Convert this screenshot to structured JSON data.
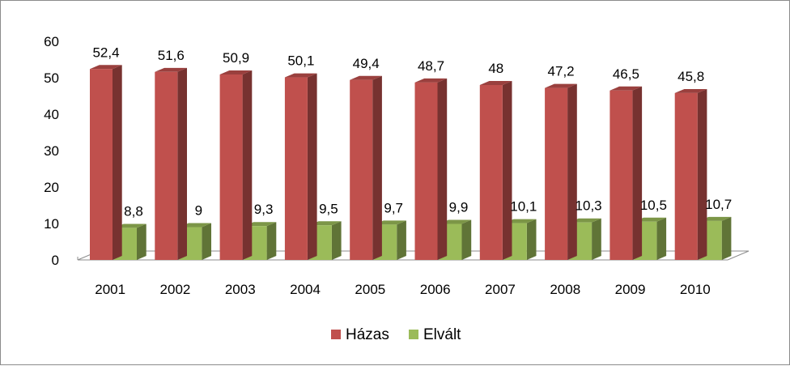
{
  "chart_data": {
    "type": "bar",
    "categories": [
      "2001",
      "2002",
      "2003",
      "2004",
      "2005",
      "2006",
      "2007",
      "2008",
      "2009",
      "2010"
    ],
    "series": [
      {
        "name": "Házas",
        "values": [
          52.4,
          51.6,
          50.9,
          50.1,
          49.4,
          48.7,
          48,
          47.2,
          46.5,
          45.8
        ],
        "labels": [
          "52,4",
          "51,6",
          "50,9",
          "50,1",
          "49,4",
          "48,7",
          "48",
          "47,2",
          "46,5",
          "45,8"
        ],
        "color": "#c0504d"
      },
      {
        "name": "Elvált",
        "values": [
          8.8,
          9,
          9.3,
          9.5,
          9.7,
          9.9,
          10.1,
          10.3,
          10.5,
          10.7
        ],
        "labels": [
          "8,8",
          "9",
          "9,3",
          "9,5",
          "9,7",
          "9,9",
          "10,1",
          "10,3",
          "10,5",
          "10,7"
        ],
        "color": "#9bbb59"
      }
    ],
    "yticks": [
      "0",
      "10",
      "20",
      "30",
      "40",
      "50",
      "60"
    ],
    "ylim": [
      0,
      60
    ],
    "legend_position": "bottom",
    "grid": false,
    "three_d": true
  }
}
